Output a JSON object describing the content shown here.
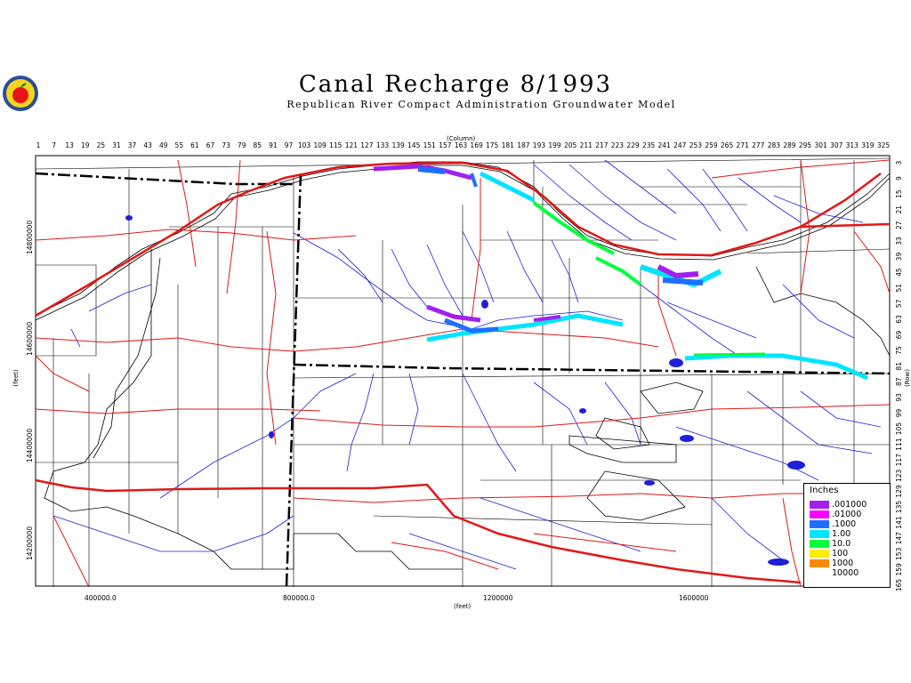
{
  "title": "Canal Recharge 8/1993",
  "subtitle": "Republican River Compact Administration Groundwater Model",
  "logo": {
    "icon": "apple-logo-icon",
    "colors": {
      "apple": "#e8141c",
      "ring": "#2a4d9a",
      "leaf": "#2e8b2e",
      "bg": "#f7d51d"
    }
  },
  "axes": {
    "column_label": "(Column)",
    "row_label": "(Row)",
    "x_label": "(feet)",
    "y_label": "(feet)",
    "column_ticks": [
      "1",
      "7",
      "13",
      "19",
      "25",
      "31",
      "37",
      "43",
      "49",
      "55",
      "61",
      "67",
      "73",
      "79",
      "85",
      "91",
      "97",
      "103",
      "109",
      "115",
      "121",
      "127",
      "133",
      "139",
      "145",
      "151",
      "157",
      "163",
      "169",
      "175",
      "181",
      "187",
      "193",
      "199",
      "205",
      "211",
      "217",
      "223",
      "229",
      "235",
      "241",
      "247",
      "253",
      "259",
      "265",
      "271",
      "277",
      "283",
      "289",
      "295",
      "301",
      "307",
      "313",
      "319",
      "325"
    ],
    "row_ticks": [
      "3",
      "9",
      "15",
      "21",
      "27",
      "33",
      "39",
      "45",
      "51",
      "57",
      "63",
      "69",
      "75",
      "81",
      "87",
      "93",
      "99",
      "105",
      "111",
      "117",
      "123",
      "129",
      "135",
      "141",
      "147",
      "153",
      "159",
      "165"
    ],
    "x_ticks": [
      "400000.0",
      "800000.0",
      "1200000",
      "1600000"
    ],
    "y_ticks": [
      "14800000",
      "14600000",
      "14400000",
      "14200000"
    ]
  },
  "legend": {
    "title": "Inches",
    "items": [
      {
        "label": ".001000",
        "color": "#a020f0"
      },
      {
        "label": ".01000",
        "color": "#ff00ff"
      },
      {
        "label": ".1000",
        "color": "#1e6fff"
      },
      {
        "label": "1.00",
        "color": "#00e5ff"
      },
      {
        "label": "10.0",
        "color": "#00ff3c"
      },
      {
        "label": "100",
        "color": "#ffee00"
      },
      {
        "label": "1000",
        "color": "#ff8800"
      },
      {
        "label": "10000",
        "color": "#ffffff"
      }
    ]
  },
  "colors": {
    "roads": "#e01818",
    "streams": "#1f1fd8",
    "boundary": "#000000",
    "background": "#ffffff"
  }
}
